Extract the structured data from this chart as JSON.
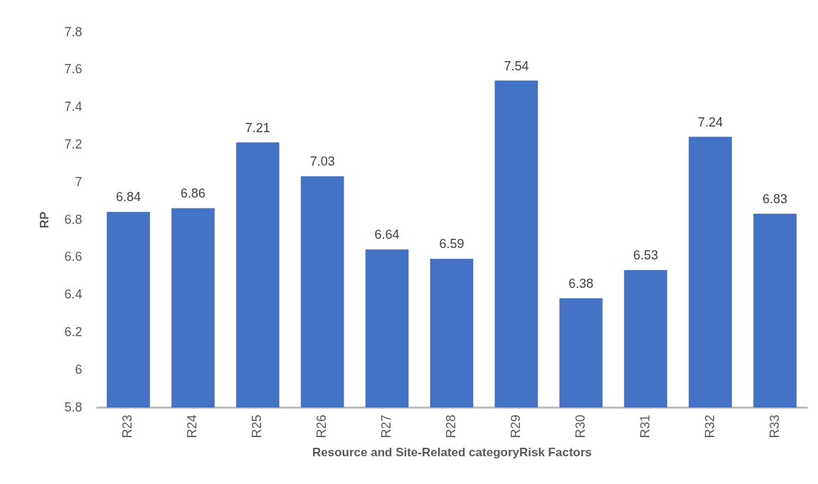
{
  "chart_data": {
    "type": "bar",
    "xlabel": "Resource and Site-Related categoryRisk Factors",
    "ylabel": "RP",
    "categories": [
      "R23",
      "R24",
      "R25",
      "R26",
      "R27",
      "R28",
      "R29",
      "R30",
      "R31",
      "R32",
      "R33"
    ],
    "values": [
      6.84,
      6.86,
      7.21,
      7.03,
      6.64,
      6.59,
      7.54,
      6.38,
      6.53,
      7.24,
      6.83
    ],
    "color": "#4472c4",
    "ylim": [
      5.8,
      7.8
    ],
    "yticks": [
      5.8,
      6,
      6.2,
      6.4,
      6.6,
      6.8,
      7,
      7.2,
      7.4,
      7.6,
      7.8
    ],
    "grid": false,
    "data_labels": true
  }
}
